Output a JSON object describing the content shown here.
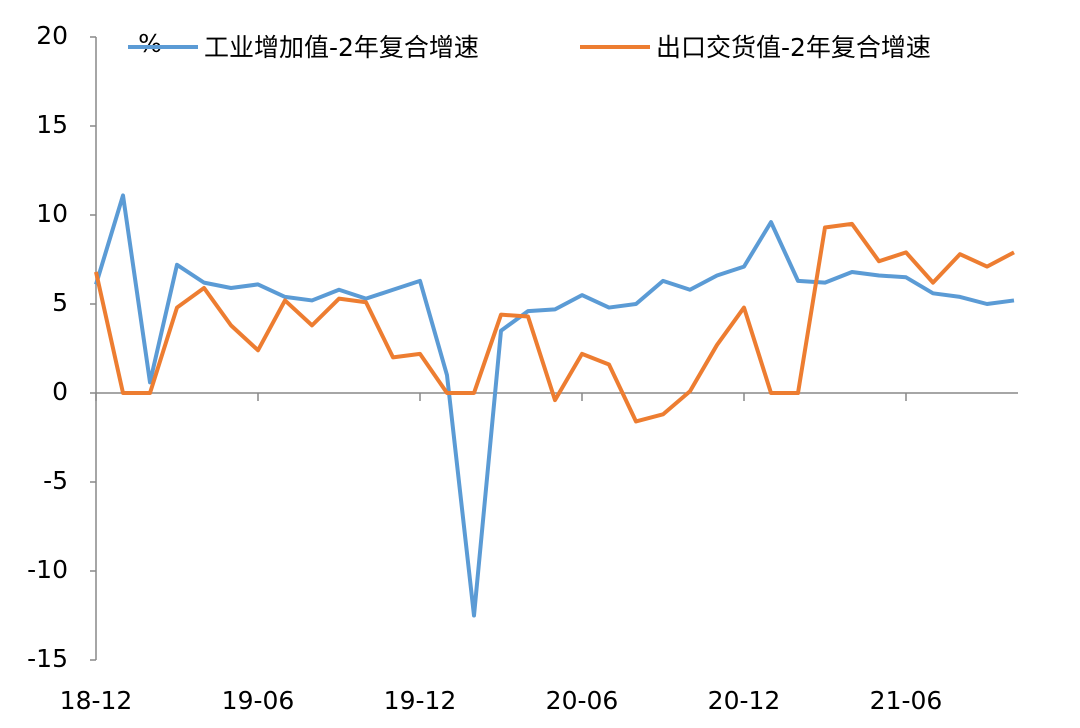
{
  "chart_data": {
    "type": "line",
    "y_unit": "%",
    "categories": [
      "18-12",
      null,
      null,
      null,
      null,
      null,
      "19-06",
      null,
      null,
      null,
      null,
      null,
      "19-12",
      null,
      null,
      null,
      null,
      null,
      "20-06",
      null,
      null,
      null,
      null,
      null,
      "20-12",
      null,
      null,
      null,
      null,
      null,
      "21-06",
      null,
      null,
      null,
      null
    ],
    "series": [
      {
        "name": "工业增加值-2年复合增速",
        "color": "#5b9bd5",
        "values": [
          6.1,
          11.1,
          0.6,
          7.2,
          6.2,
          5.9,
          6.1,
          5.4,
          5.2,
          5.8,
          5.3,
          5.8,
          6.3,
          1.0,
          -12.5,
          3.5,
          4.6,
          4.7,
          5.5,
          4.8,
          5.0,
          6.3,
          5.8,
          6.6,
          7.1,
          9.6,
          6.3,
          6.2,
          6.8,
          6.6,
          6.5,
          5.6,
          5.4,
          5.0,
          5.2
        ]
      },
      {
        "name": "出口交货值-2年复合增速",
        "color": "#ed7d31",
        "values": [
          6.8,
          0,
          0,
          4.8,
          5.9,
          3.8,
          2.4,
          5.2,
          3.8,
          5.3,
          5.1,
          2.0,
          2.2,
          0,
          0,
          4.4,
          4.3,
          -0.4,
          2.2,
          1.6,
          -1.6,
          -1.2,
          0.1,
          2.7,
          4.8,
          0,
          0,
          9.3,
          9.5,
          7.4,
          7.9,
          6.2,
          7.8,
          7.1,
          7.9
        ]
      }
    ],
    "ylim": [
      -15,
      20
    ],
    "yticks": [
      -15,
      -10,
      -5,
      0,
      5,
      10,
      15,
      20
    ],
    "legend": "top",
    "grid": false
  }
}
